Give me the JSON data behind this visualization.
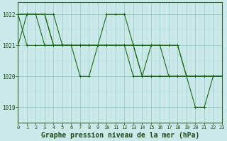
{
  "title": "Graphe pression niveau de la mer (hPa)",
  "bg_color": "#cce9e9",
  "grid_color_major": "#99cccc",
  "grid_color_minor": "#b3d9d9",
  "line_color": "#1a6b1a",
  "xlim": [
    0,
    23
  ],
  "ylim": [
    1018.5,
    1022.4
  ],
  "yticks": [
    1019,
    1020,
    1021,
    1022
  ],
  "xticks": [
    0,
    1,
    2,
    3,
    4,
    5,
    6,
    7,
    8,
    9,
    10,
    11,
    12,
    13,
    14,
    15,
    16,
    17,
    18,
    19,
    20,
    21,
    22,
    23
  ],
  "series": [
    [
      1021,
      1022,
      1022,
      1022,
      1022,
      1021,
      1021,
      1020,
      1020,
      1021,
      1022,
      1022,
      1022,
      1021,
      1020,
      1021,
      1021,
      1021,
      1021,
      1020,
      1019,
      1019,
      1020,
      1020
    ],
    [
      1022,
      1022,
      1022,
      1022,
      1021,
      1021,
      1021,
      1021,
      1021,
      1021,
      1021,
      1021,
      1021,
      1021,
      1021,
      1021,
      1021,
      1020,
      1020,
      1020,
      1020,
      1020,
      1020,
      1020
    ],
    [
      1022,
      1022,
      1022,
      1022,
      1021,
      1021,
      1021,
      1021,
      1021,
      1021,
      1021,
      1021,
      1021,
      1021,
      1020,
      1020,
      1020,
      1020,
      1020,
      1020,
      1020,
      1020,
      1020,
      1020
    ],
    [
      1022,
      1022,
      1022,
      1021,
      1021,
      1021,
      1021,
      1021,
      1021,
      1021,
      1021,
      1021,
      1021,
      1021,
      1021,
      1021,
      1021,
      1021,
      1021,
      1020,
      1020,
      1020,
      1020,
      1020
    ],
    [
      1022,
      1021,
      1021,
      1021,
      1021,
      1021,
      1021,
      1021,
      1021,
      1021,
      1021,
      1021,
      1021,
      1020,
      1020,
      1020,
      1020,
      1020,
      1020,
      1020,
      1020,
      1020,
      1020,
      1020
    ]
  ],
  "marker_size": 3.0,
  "linewidth": 0.8,
  "title_fontsize": 7.0,
  "tick_fontsize": 5.0
}
